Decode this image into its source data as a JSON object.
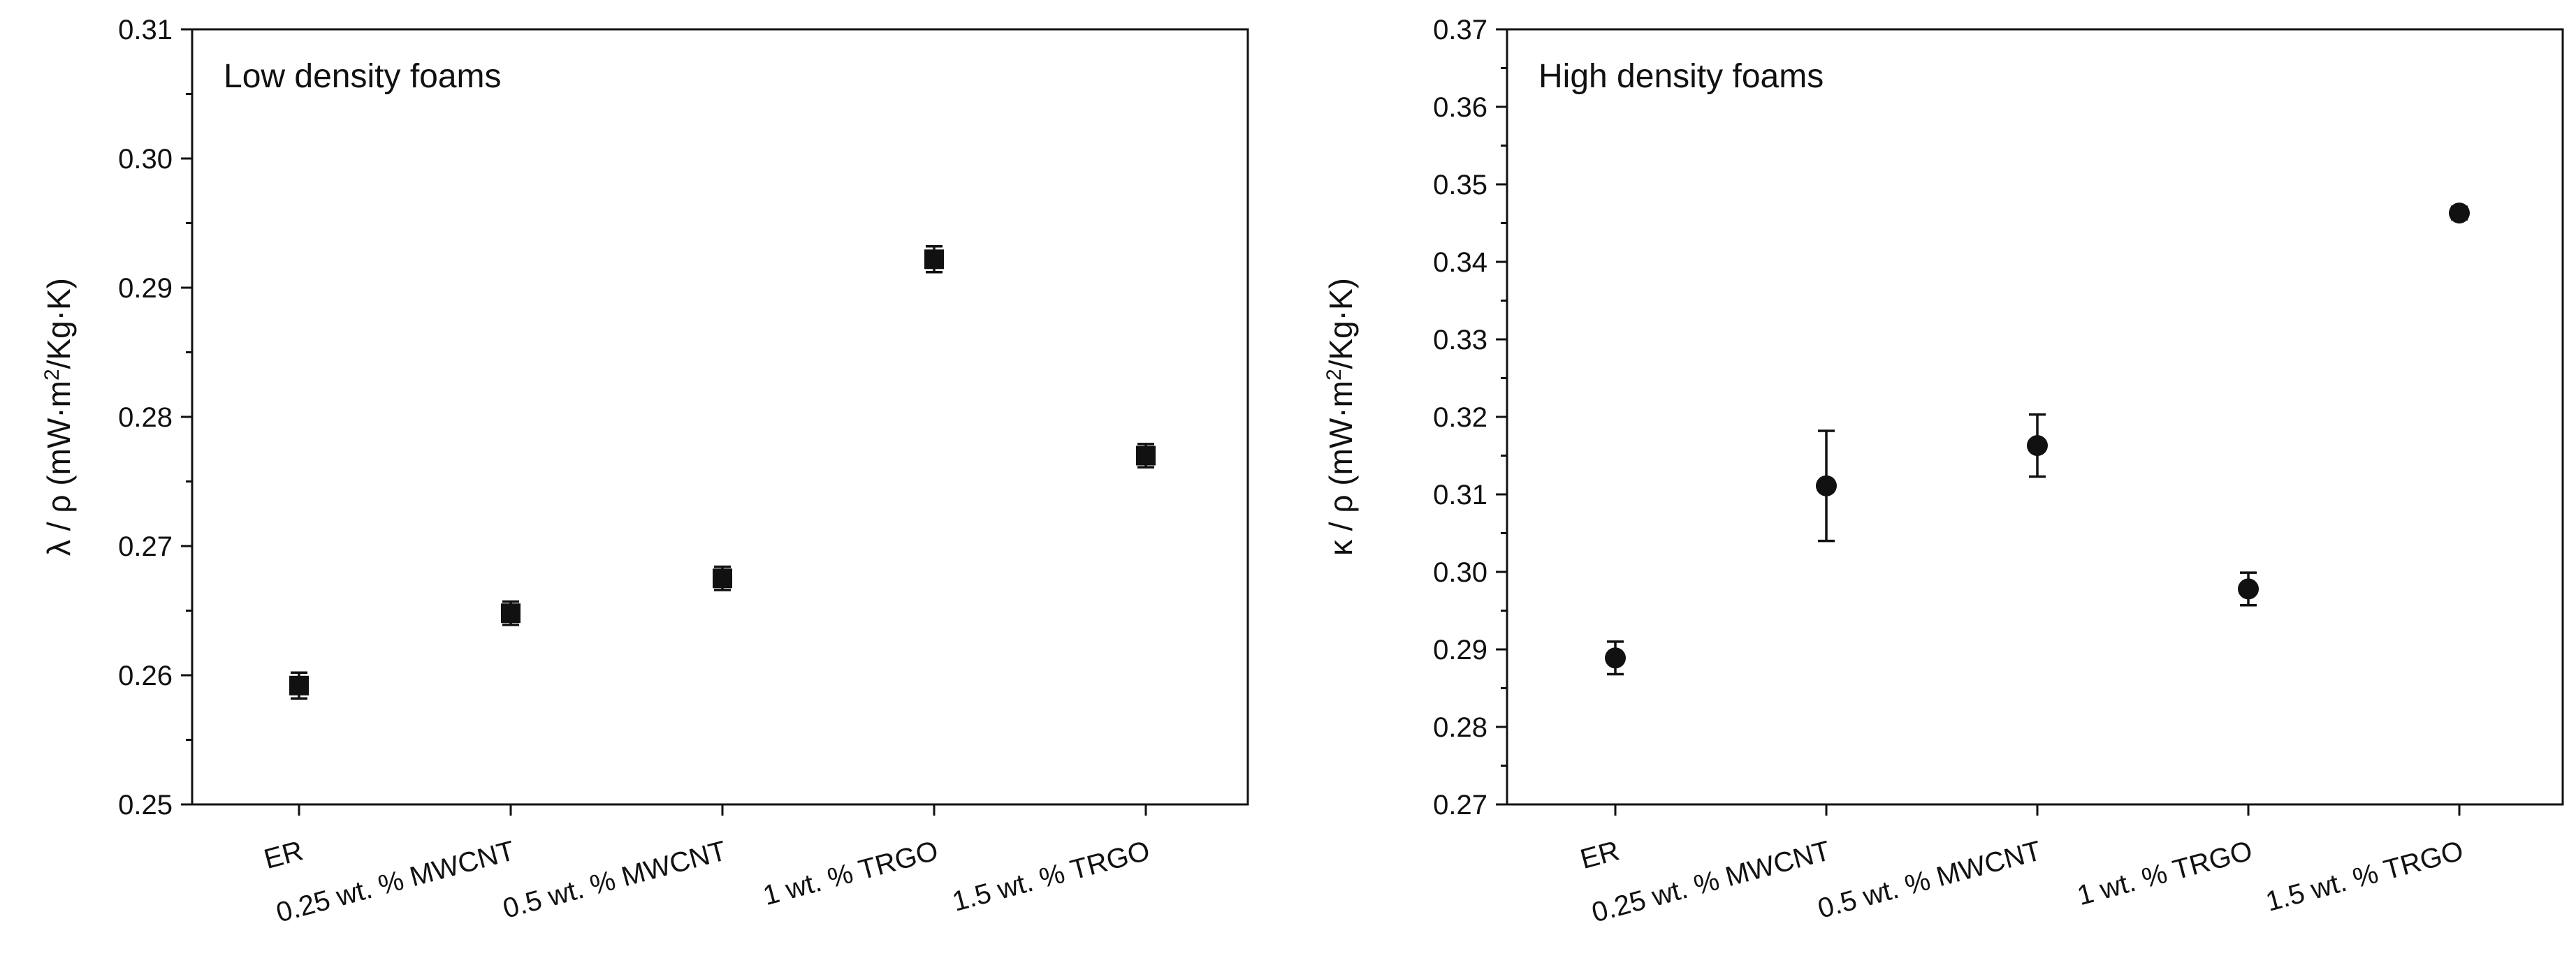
{
  "chart_data": [
    {
      "type": "scatter",
      "title": "Low density foams",
      "xlabel": "",
      "ylabel": "λ / ρ (mW·m²/Kg·K)",
      "ylabel_parts": {
        "prefix": "λ / ρ (mW·m",
        "sup": "2",
        "suffix": "/Kg·K)"
      },
      "categories": [
        "ER",
        "0.25 wt. % MWCNT",
        "0.5 wt. % MWCNT",
        "1 wt. % TRGO",
        "1.5 wt. % TRGO"
      ],
      "values": [
        0.2592,
        0.2648,
        0.2675,
        0.2922,
        0.277
      ],
      "errors": [
        0.001,
        0.0009,
        0.0009,
        0.001,
        0.0009
      ],
      "marker": "square",
      "ylim": [
        0.25,
        0.31
      ],
      "yticks": [
        "0.25",
        "0.26",
        "0.27",
        "0.28",
        "0.29",
        "0.30",
        "0.31"
      ],
      "grid": false,
      "legend": "none"
    },
    {
      "type": "scatter",
      "title": "High density foams",
      "xlabel": "",
      "ylabel": "κ / ρ (mW·m²/Kg·K)",
      "ylabel_parts": {
        "prefix": "κ / ρ (mW·m",
        "sup": "2",
        "suffix": "/Kg·K)"
      },
      "categories": [
        "ER",
        "0.25 wt. % MWCNT",
        "0.5 wt. % MWCNT",
        "1 wt. % TRGO",
        "1.5 wt. % TRGO"
      ],
      "values": [
        0.2889,
        0.3111,
        0.3163,
        0.2978,
        0.3463
      ],
      "errors": [
        0.0021,
        0.0071,
        0.004,
        0.0021,
        0.0008
      ],
      "marker": "circle",
      "ylim": [
        0.27,
        0.37
      ],
      "yticks": [
        "0.27",
        "0.28",
        "0.29",
        "0.30",
        "0.31",
        "0.32",
        "0.33",
        "0.34",
        "0.35",
        "0.36",
        "0.37"
      ],
      "grid": false,
      "legend": "none"
    }
  ]
}
